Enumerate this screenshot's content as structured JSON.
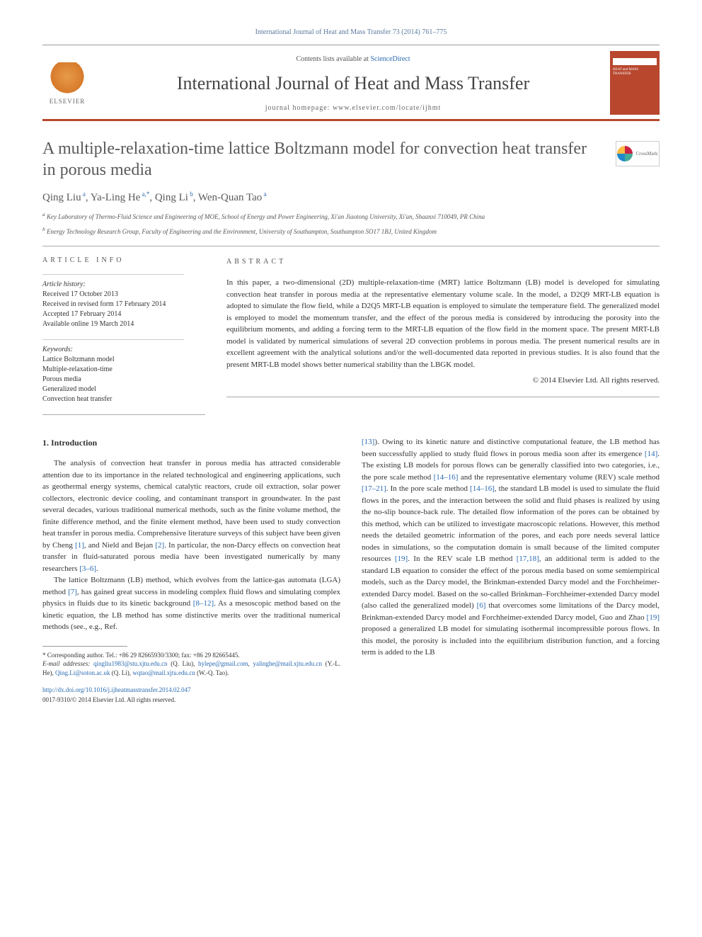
{
  "journal_reference": "International Journal of Heat and Mass Transfer 73 (2014) 761–775",
  "header": {
    "contents_prefix": "Contents lists available at ",
    "contents_link": "ScienceDirect",
    "journal_name": "International Journal of Heat and Mass Transfer",
    "homepage_prefix": "journal homepage: ",
    "homepage_url": "www.elsevier.com/locate/ijhmt",
    "elsevier": "ELSEVIER",
    "cover_text": "HEAT and MASS TRANSFER"
  },
  "crossmark": "CrossMark",
  "title": "A multiple-relaxation-time lattice Boltzmann model for convection heat transfer in porous media",
  "authors_html": "Qing Liu<sup> a</sup>, Ya-Ling He<sup> a,*</sup>, Qing Li<sup> b</sup>, Wen-Quan Tao<sup> a</sup>",
  "affiliations": {
    "a": "Key Laboratory of Thermo-Fluid Science and Engineering of MOE, School of Energy and Power Engineering, Xi'an Jiaotong University, Xi'an, Shaanxi 710049, PR China",
    "b": "Energy Technology Research Group, Faculty of Engineering and the Environment, University of Southampton, Southampton SO17 1BJ, United Kingdom"
  },
  "info": {
    "heading": "ARTICLE INFO",
    "history_label": "Article history:",
    "history": [
      "Received 17 October 2013",
      "Received in revised form 17 February 2014",
      "Accepted 17 February 2014",
      "Available online 19 March 2014"
    ],
    "keywords_label": "Keywords:",
    "keywords": [
      "Lattice Boltzmann model",
      "Multiple-relaxation-time",
      "Porous media",
      "Generalized model",
      "Convection heat transfer"
    ]
  },
  "abstract": {
    "heading": "ABSTRACT",
    "text": "In this paper, a two-dimensional (2D) multiple-relaxation-time (MRT) lattice Boltzmann (LB) model is developed for simulating convection heat transfer in porous media at the representative elementary volume scale. In the model, a D2Q9 MRT-LB equation is adopted to simulate the flow field, while a D2Q5 MRT-LB equation is employed to simulate the temperature field. The generalized model is employed to model the momentum transfer, and the effect of the porous media is considered by introducing the porosity into the equilibrium moments, and adding a forcing term to the MRT-LB equation of the flow field in the moment space. The present MRT-LB model is validated by numerical simulations of several 2D convection problems in porous media. The present numerical results are in excellent agreement with the analytical solutions and/or the well-documented data reported in previous studies. It is also found that the present MRT-LB model shows better numerical stability than the LBGK model.",
    "copyright": "© 2014 Elsevier Ltd. All rights reserved."
  },
  "body": {
    "section_number": "1.",
    "section_title": "Introduction",
    "col1_p1": "The analysis of convection heat transfer in porous media has attracted considerable attention due to its importance in the related technological and engineering applications, such as geothermal energy systems, chemical catalytic reactors, crude oil extraction, solar power collectors, electronic device cooling, and contaminant transport in groundwater. In the past several decades, various traditional numerical methods, such as the finite volume method, the finite difference method, and the finite element method, have been used to study convection heat transfer in porous media. Comprehensive literature surveys of this subject have been given by Cheng ",
    "col1_p1_ref1": "[1]",
    "col1_p1_mid": ", and Nield and Bejan ",
    "col1_p1_ref2": "[2]",
    "col1_p1_tail": ". In particular, the non-Darcy effects on convection heat transfer in fluid-saturated porous media have been investigated numerically by many researchers ",
    "col1_p1_ref3": "[3–6]",
    "col1_p1_end": ".",
    "col1_p2_a": "The lattice Boltzmann (LB) method, which evolves from the lattice-gas automata (LGA) method ",
    "col1_p2_ref1": "[7]",
    "col1_p2_b": ", has gained great success in modeling complex fluid flows and simulating complex physics in fluids due to its kinetic background ",
    "col1_p2_ref2": "[8–12]",
    "col1_p2_c": ". As a mesoscopic method based on the kinetic equation, the LB method has some distinctive merits over the traditional numerical methods (see., e.g., Ref.",
    "col2_a_ref1": "[13]",
    "col2_a": "). Owing to its kinetic nature and distinctive computational feature, the LB method has been successfully applied to study fluid flows in porous media soon after its emergence ",
    "col2_a_ref2": "[14]",
    "col2_b": ". The existing LB models for porous flows can be generally classified into two categories, i.e., the pore scale method ",
    "col2_b_ref1": "[14–16]",
    "col2_c": " and the representative elementary volume (REV) scale method ",
    "col2_c_ref1": "[17–21]",
    "col2_d": ". In the pore scale method ",
    "col2_d_ref1": "[14–16]",
    "col2_e": ", the standard LB model is used to simulate the fluid flows in the pores, and the interaction between the solid and fluid phases is realized by using the no-slip bounce-back rule. The detailed flow information of the pores can be obtained by this method, which can be utilized to investigate macroscopic relations. However, this method needs the detailed geometric information of the pores, and each pore needs several lattice nodes in simulations, so the computation domain is small because of the limited computer resources ",
    "col2_e_ref1": "[19]",
    "col2_f": ". In the REV scale LB method ",
    "col2_f_ref1": "[17,18]",
    "col2_g": ", an additional term is added to the standard LB equation to consider the effect of the porous media based on some semiempirical models, such as the Darcy model, the Brinkman-extended Darcy model and the Forchheimer-extended Darcy model. Based on the so-called Brinkman–Forchheimer-extended Darcy model (also called the generalized model) ",
    "col2_g_ref1": "[6]",
    "col2_h": " that overcomes some limitations of the Darcy model, Brinkman-extended Darcy model and Forchheimer-extended Darcy model, Guo and Zhao ",
    "col2_h_ref1": "[19]",
    "col2_i": " proposed a generalized LB model for simulating isothermal incompressible porous flows. In this model, the porosity is included into the equilibrium distribution function, and a forcing term is added to the LB"
  },
  "footnote": {
    "corr": "* Corresponding author. Tel.: +86 29 82665930/3300; fax: +86 29 82665445.",
    "email_label": "E-mail addresses: ",
    "emails": "qingliu1983@stu.xjtu.edu.cn (Q. Liu), hylepe@gmail.com, yalinghe@mail.xjtu.edu.cn (Y.-L. He), Qing.Li@soton.ac.uk (Q. Li), wqtao@mail.xjtu.edu.cn (W.-Q. Tao)."
  },
  "doi": "http://dx.doi.org/10.1016/j.ijheatmasstransfer.2014.02.047",
  "issn_copyright": "0017-9310/© 2014 Elsevier Ltd. All rights reserved.",
  "colors": {
    "accent": "#b8472e",
    "link": "#2a6ab0",
    "text": "#333333",
    "heading": "#5a5a5a"
  }
}
